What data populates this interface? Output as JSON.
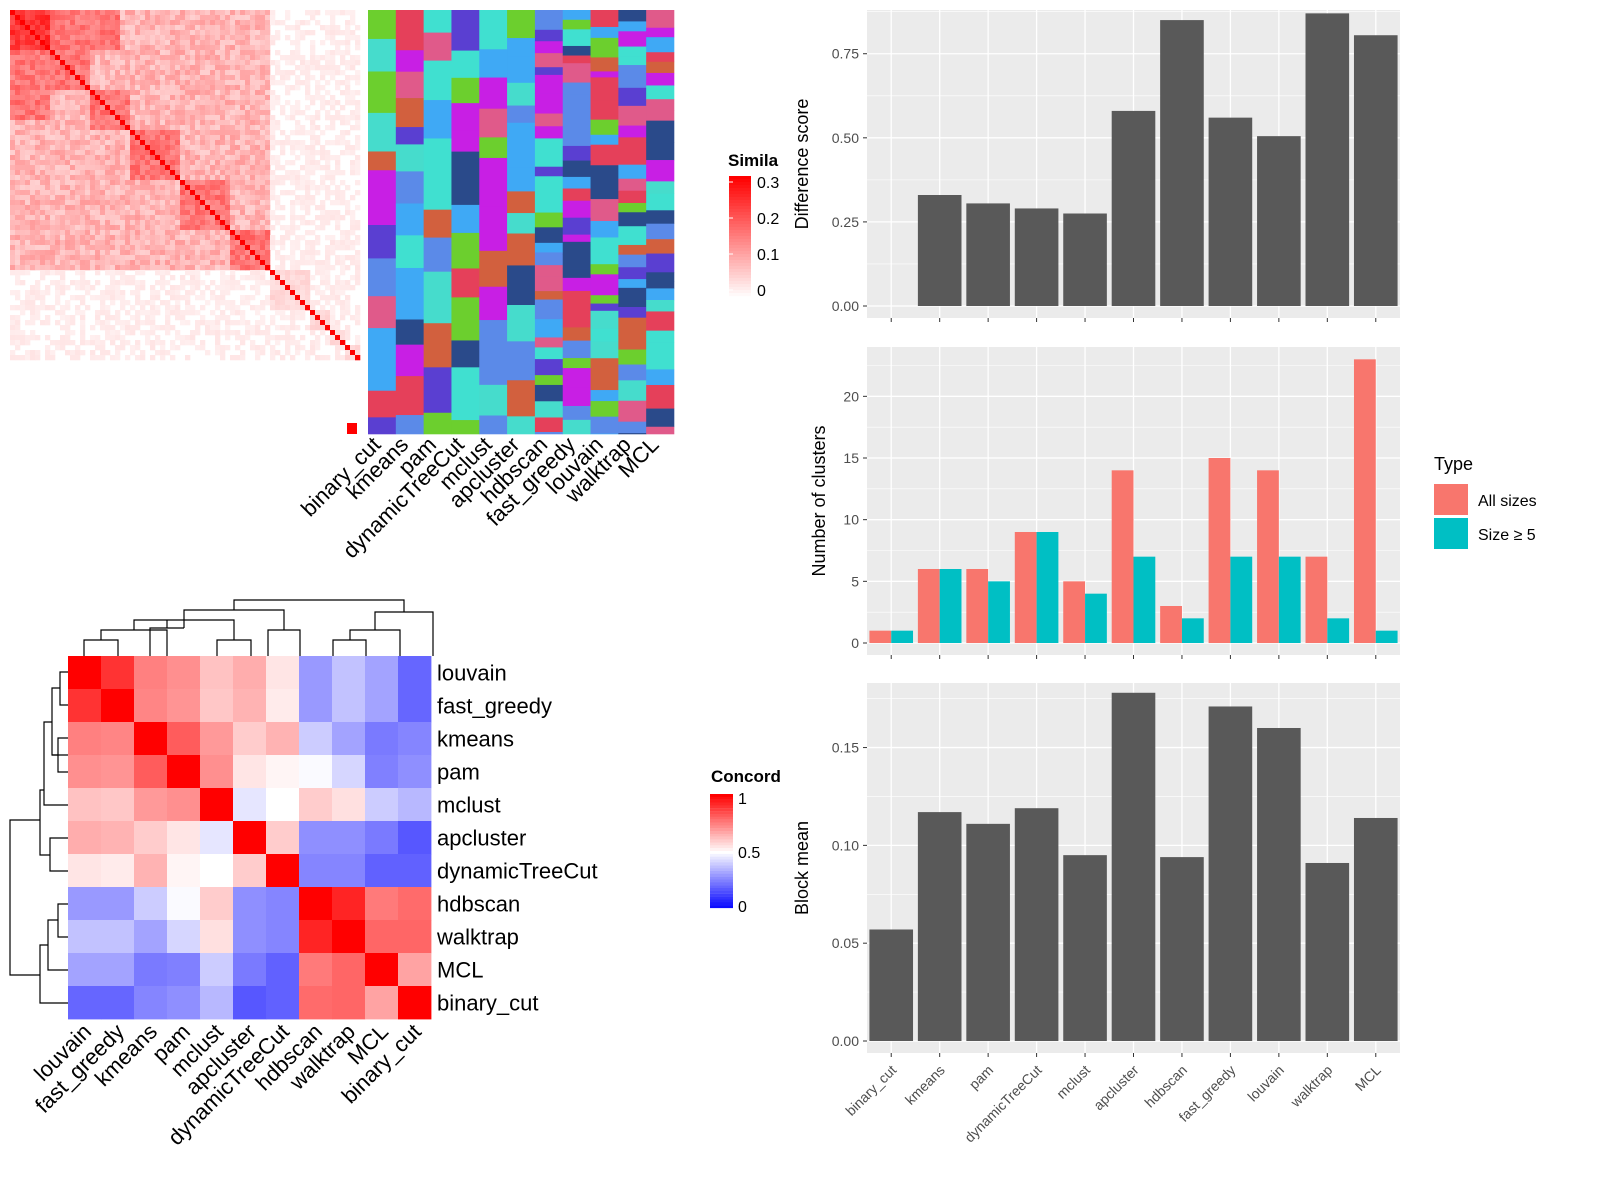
{
  "colors": {
    "panel_bg": "#ebebeb",
    "grid": "#ffffff",
    "bar": "#595959",
    "all_sizes": "#F8766D",
    "size5": "#00BFC4",
    "sim_high": "#ff0000",
    "sim_low": "#ffffff",
    "conc_high": "#ff0000",
    "conc_mid": "#ffffff",
    "conc_low": "#0000ff"
  },
  "chart_data": [
    {
      "type": "heatmap",
      "id": "similarity",
      "legend_title": "Simila",
      "legend_ticks": [
        "0.3",
        "0.2",
        "0.1",
        "0"
      ],
      "columns": [
        "binary_cut",
        "kmeans",
        "pam",
        "dynamicTreeCut",
        "mclust",
        "apcluster",
        "hdbscan",
        "fast_greedy",
        "louvain",
        "walktrap",
        "MCL"
      ]
    },
    {
      "type": "heatmap",
      "id": "concordance",
      "legend_title": "Concord",
      "legend_ticks": [
        "1",
        "0.5",
        "0"
      ],
      "rows": [
        "louvain",
        "fast_greedy",
        "kmeans",
        "pam",
        "mclust",
        "apcluster",
        "dynamicTreeCut",
        "hdbscan",
        "walktrap",
        "MCL",
        "binary_cut"
      ],
      "matrix": [
        [
          1.0,
          0.9,
          0.75,
          0.72,
          0.62,
          0.66,
          0.55,
          0.3,
          0.38,
          0.32,
          0.2
        ],
        [
          0.9,
          1.0,
          0.74,
          0.71,
          0.61,
          0.65,
          0.54,
          0.3,
          0.38,
          0.32,
          0.2
        ],
        [
          0.75,
          0.74,
          1.0,
          0.82,
          0.7,
          0.6,
          0.65,
          0.4,
          0.32,
          0.24,
          0.26
        ],
        [
          0.72,
          0.71,
          0.82,
          1.0,
          0.72,
          0.55,
          0.52,
          0.49,
          0.42,
          0.25,
          0.28
        ],
        [
          0.62,
          0.61,
          0.7,
          0.72,
          1.0,
          0.45,
          0.5,
          0.6,
          0.56,
          0.4,
          0.36
        ],
        [
          0.66,
          0.65,
          0.6,
          0.55,
          0.45,
          1.0,
          0.6,
          0.28,
          0.28,
          0.24,
          0.17
        ],
        [
          0.55,
          0.54,
          0.65,
          0.52,
          0.5,
          0.6,
          1.0,
          0.26,
          0.26,
          0.19,
          0.19
        ],
        [
          0.3,
          0.3,
          0.4,
          0.49,
          0.6,
          0.28,
          0.26,
          1.0,
          0.93,
          0.76,
          0.79
        ],
        [
          0.38,
          0.38,
          0.32,
          0.42,
          0.56,
          0.28,
          0.26,
          0.93,
          1.0,
          0.8,
          0.8
        ],
        [
          0.32,
          0.32,
          0.24,
          0.25,
          0.4,
          0.24,
          0.19,
          0.76,
          0.8,
          1.0,
          0.68
        ],
        [
          0.2,
          0.2,
          0.26,
          0.28,
          0.36,
          0.17,
          0.19,
          0.79,
          0.8,
          0.68,
          1.0
        ]
      ],
      "legend_position": "right"
    },
    {
      "type": "bar",
      "id": "difference",
      "categories": [
        "binary_cut",
        "kmeans",
        "pam",
        "dynamicTreeCut",
        "mclust",
        "apcluster",
        "hdbscan",
        "fast_greedy",
        "louvain",
        "walktrap",
        "MCL"
      ],
      "values": [
        0.0,
        0.33,
        0.305,
        0.29,
        0.275,
        0.58,
        0.85,
        0.56,
        0.505,
        0.87,
        0.805
      ],
      "ylabel": "Difference score",
      "ylim": [
        0,
        0.88
      ],
      "yticks": [
        "0.00",
        "0.25",
        "0.50",
        "0.75"
      ],
      "ytick_values": [
        0,
        0.25,
        0.5,
        0.75
      ]
    },
    {
      "type": "bar",
      "id": "nclusters",
      "categories": [
        "binary_cut",
        "kmeans",
        "pam",
        "dynamicTreeCut",
        "mclust",
        "apcluster",
        "hdbscan",
        "fast_greedy",
        "louvain",
        "walktrap",
        "MCL"
      ],
      "series": [
        {
          "name": "All sizes",
          "values": [
            1,
            6,
            6,
            9,
            5,
            14,
            3,
            15,
            14,
            7,
            23
          ]
        },
        {
          "name": "Size ≥ 5",
          "values": [
            1,
            6,
            5,
            9,
            4,
            7,
            2,
            7,
            7,
            2,
            1
          ]
        }
      ],
      "ylabel": "Number of clusters",
      "ylim": [
        0,
        24
      ],
      "yticks": [
        "0",
        "5",
        "10",
        "15",
        "20"
      ],
      "ytick_values": [
        0,
        5,
        10,
        15,
        20
      ],
      "legend_title": "Type",
      "legend_position": "right"
    },
    {
      "type": "bar",
      "id": "blockmean",
      "categories": [
        "binary_cut",
        "kmeans",
        "pam",
        "dynamicTreeCut",
        "mclust",
        "apcluster",
        "hdbscan",
        "fast_greedy",
        "louvain",
        "walktrap",
        "MCL"
      ],
      "values": [
        0.057,
        0.117,
        0.111,
        0.119,
        0.095,
        0.178,
        0.094,
        0.171,
        0.16,
        0.091,
        0.114
      ],
      "ylabel": "Block mean",
      "ylim": [
        0,
        0.183
      ],
      "yticks": [
        "0.00",
        "0.05",
        "0.10",
        "0.15"
      ],
      "ytick_values": [
        0,
        0.05,
        0.1,
        0.15
      ]
    }
  ]
}
